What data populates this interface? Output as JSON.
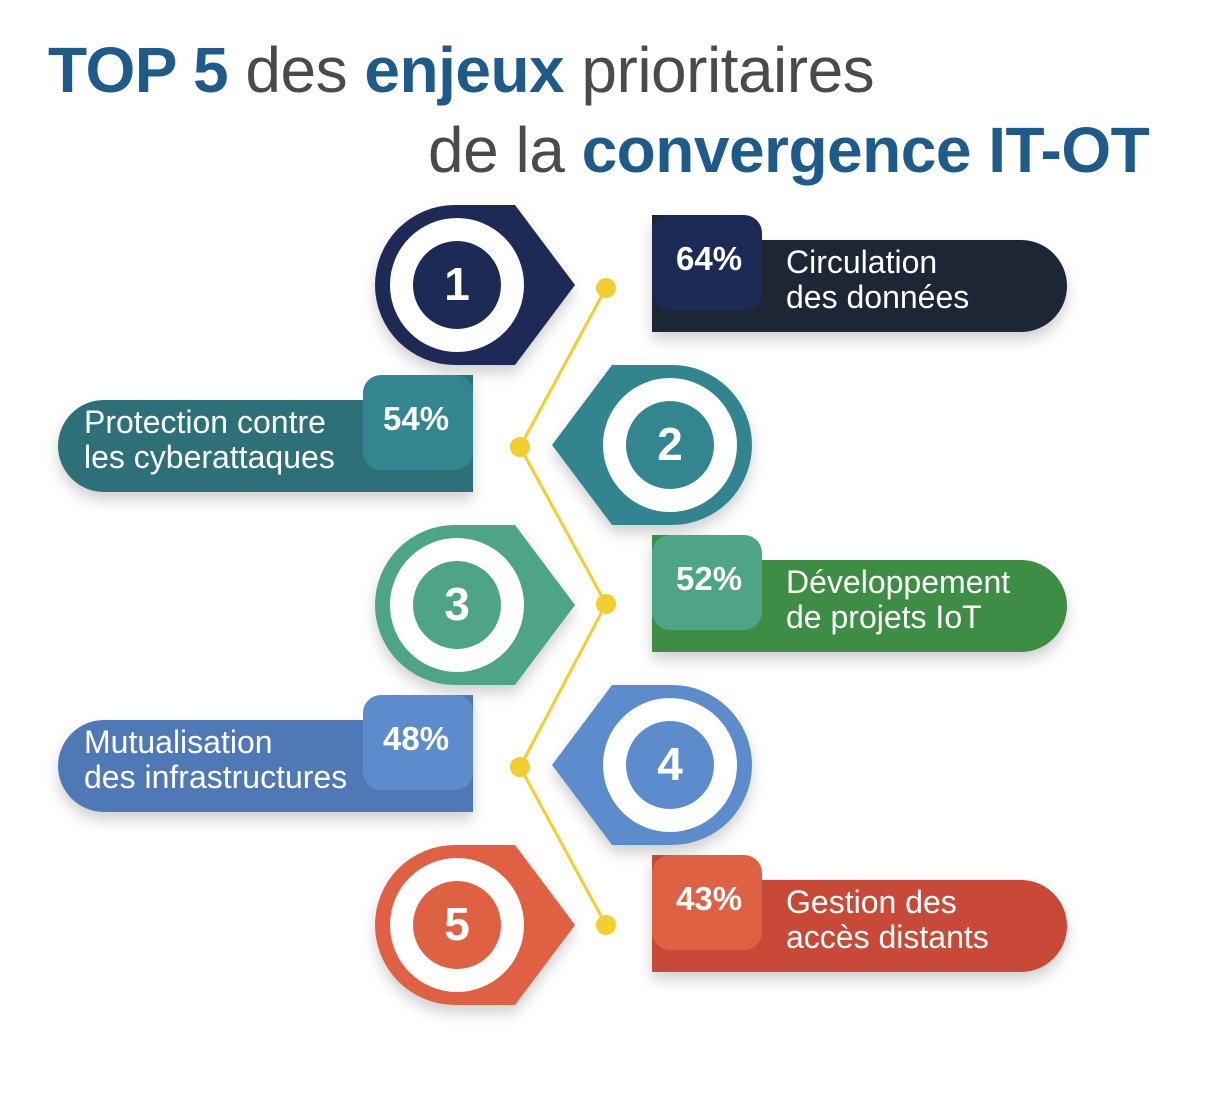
{
  "title": {
    "line1_bold": "TOP 5",
    "line1_mid": " des ",
    "line1_bold2": "enjeux",
    "line1_end": " prioritaires",
    "line2_start": "de la ",
    "line2_bold": "convergence IT-OT"
  },
  "colors": {
    "title_accent": "#1f5b8a",
    "title_text": "#4a4a4a",
    "connector": "#f2cf2e"
  },
  "items": [
    {
      "rank": "1",
      "percent": "64%",
      "value": 64,
      "label_line1": "Circulation",
      "label_line2": "des données",
      "color": "#1c2b55",
      "color_dark": "#1e2534"
    },
    {
      "rank": "2",
      "percent": "54%",
      "value": 54,
      "label_line1": "Protection contre",
      "label_line2": "les cyberattaques",
      "color": "#33858f",
      "color_dark": "#2d6f78"
    },
    {
      "rank": "3",
      "percent": "52%",
      "value": 52,
      "label_line1": "Développement",
      "label_line2": "de projets IoT",
      "color": "#4ea585",
      "color_dark": "#3d8d45"
    },
    {
      "rank": "4",
      "percent": "48%",
      "value": 48,
      "label_line1": "Mutualisation",
      "label_line2": "des infrastructures",
      "color": "#5c8ccc",
      "color_dark": "#4f79b6"
    },
    {
      "rank": "5",
      "percent": "43%",
      "value": 43,
      "label_line1": "Gestion des",
      "label_line2": "accès distants",
      "color": "#df6143",
      "color_dark": "#c84838"
    }
  ]
}
